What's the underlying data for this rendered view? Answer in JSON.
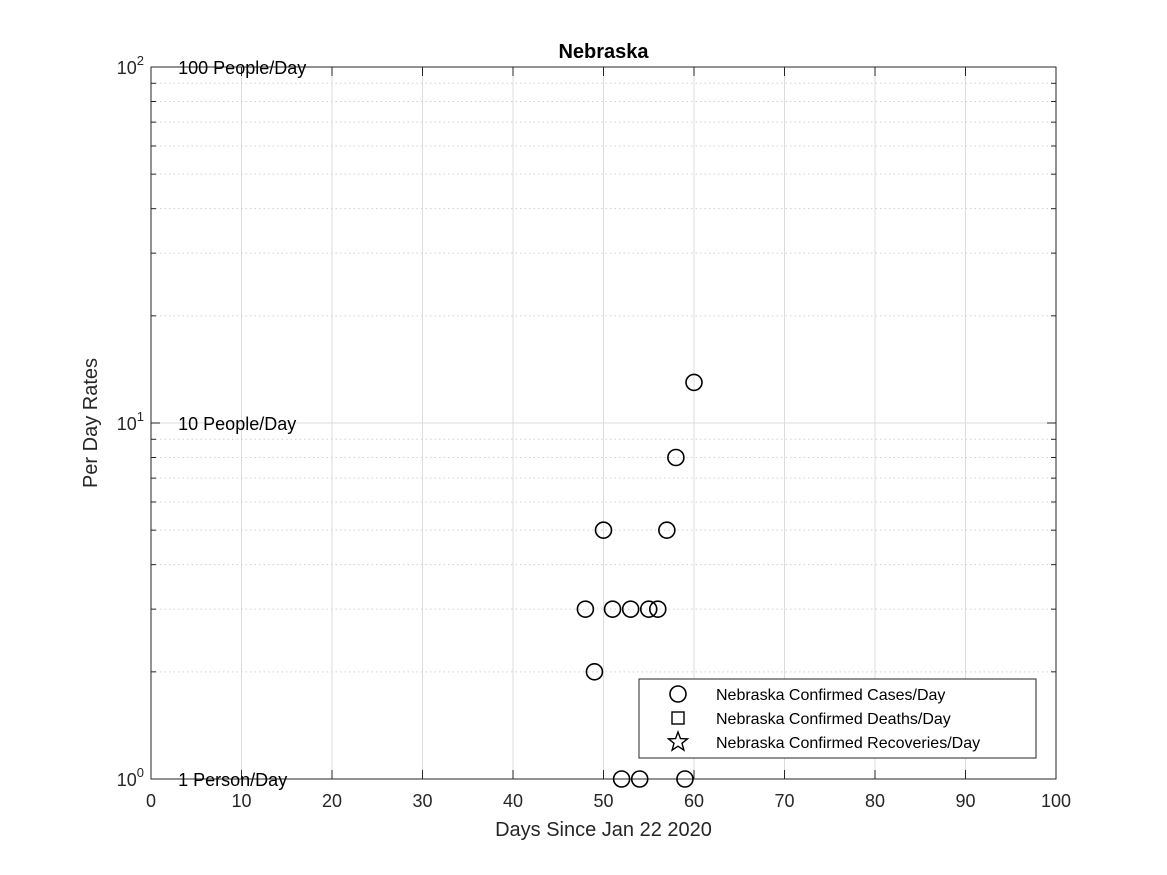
{
  "chart_data": {
    "type": "scatter",
    "title": "Nebraska",
    "xlabel": "Days Since Jan 22 2020",
    "ylabel": "Per Day Rates",
    "xlim": [
      0,
      100
    ],
    "ylim": [
      1,
      100
    ],
    "yscale": "log",
    "grid": true,
    "x_ticks": [
      0,
      10,
      20,
      30,
      40,
      50,
      60,
      70,
      80,
      90,
      100
    ],
    "y_tick_bases": [
      "10",
      "10",
      "10"
    ],
    "y_tick_exponents": [
      "0",
      "1",
      "2"
    ],
    "y_tick_values": [
      1,
      10,
      100
    ],
    "annotations": [
      {
        "text": "1 Person/Day",
        "x": 3,
        "y": 1
      },
      {
        "text": "10 People/Day",
        "x": 3,
        "y": 10
      },
      {
        "text": "100 People/Day",
        "x": 3,
        "y": 100
      }
    ],
    "legend_position": "bottom-right",
    "series": [
      {
        "name": "Nebraska Confirmed Cases/Day",
        "marker": "circle",
        "points": [
          {
            "x": 48,
            "y": 3
          },
          {
            "x": 49,
            "y": 2
          },
          {
            "x": 50,
            "y": 5
          },
          {
            "x": 51,
            "y": 3
          },
          {
            "x": 52,
            "y": 1
          },
          {
            "x": 53,
            "y": 3
          },
          {
            "x": 54,
            "y": 1
          },
          {
            "x": 55,
            "y": 3
          },
          {
            "x": 56,
            "y": 3
          },
          {
            "x": 57,
            "y": 5
          },
          {
            "x": 58,
            "y": 8
          },
          {
            "x": 59,
            "y": 1
          },
          {
            "x": 60,
            "y": 13
          }
        ]
      },
      {
        "name": "Nebraska Confirmed Deaths/Day",
        "marker": "square",
        "points": []
      },
      {
        "name": "Nebraska Confirmed Recoveries/Day",
        "marker": "star",
        "points": []
      }
    ]
  }
}
